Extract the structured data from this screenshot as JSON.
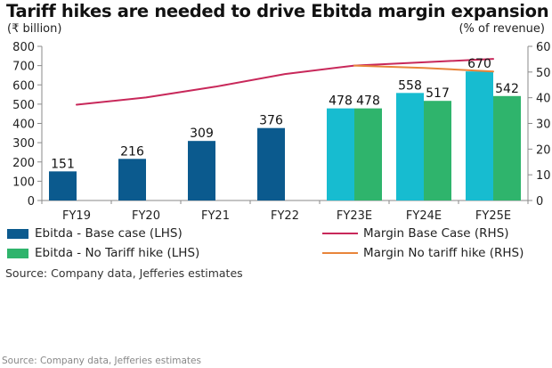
{
  "chart_data": {
    "type": "bar",
    "title": "Tariff hikes are needed to drive Ebitda margin expansion",
    "ylabel_left": "(₹ billion)",
    "ylabel_right": "(% of revenue)",
    "xlabel": "",
    "categories": [
      "FY19",
      "FY20",
      "FY21",
      "FY22",
      "FY23E",
      "FY24E",
      "FY25E"
    ],
    "ylim_left": [
      0,
      800
    ],
    "yticks_left": [
      0,
      100,
      200,
      300,
      400,
      500,
      600,
      700,
      800
    ],
    "ylim_right": [
      0,
      60
    ],
    "yticks_right": [
      0,
      10,
      20,
      30,
      40,
      50,
      60
    ],
    "grid": false,
    "bar_series": [
      {
        "name": "Ebitda - Base case (LHS)",
        "axis": "left",
        "values": [
          151,
          216,
          309,
          376,
          478,
          558,
          670
        ],
        "colors": [
          "#0b5a8e",
          "#0b5a8e",
          "#0b5a8e",
          "#0b5a8e",
          "#17bcd0",
          "#17bcd0",
          "#17bcd0"
        ]
      },
      {
        "name": "Ebitda - No Tariff hike (LHS)",
        "axis": "left",
        "values": [
          null,
          null,
          null,
          null,
          478,
          517,
          542
        ],
        "colors": [
          "#2fb46c",
          "#2fb46c",
          "#2fb46c",
          "#2fb46c",
          "#2fb46c",
          "#2fb46c",
          "#2fb46c"
        ]
      }
    ],
    "line_series": [
      {
        "name": "Margin Base Case (RHS)",
        "axis": "right",
        "color": "#c8285a",
        "values": [
          37.3,
          40.1,
          44.3,
          49.2,
          52.5,
          53.8,
          55.1
        ]
      },
      {
        "name": "Margin No tariff hike (RHS)",
        "axis": "right",
        "color": "#e8853a",
        "values": [
          null,
          null,
          null,
          null,
          52.5,
          51.6,
          50.2
        ]
      }
    ],
    "legend": {
      "placement": "bottom",
      "items": [
        {
          "label": "Ebitda - Base case (LHS)",
          "kind": "bar",
          "color": "#0b5a8e"
        },
        {
          "label": "Ebitda - No Tariff hike (LHS)",
          "kind": "bar",
          "color": "#2fb46c"
        },
        {
          "label": "Margin Base Case (RHS)",
          "kind": "line",
          "color": "#c8285a"
        },
        {
          "label": "Margin No tariff hike (RHS)",
          "kind": "line",
          "color": "#e8853a"
        }
      ]
    },
    "source": "Source: Company data, Jefferies estimates"
  },
  "footer": {
    "source": "Source: Company data, Jefferies estimates"
  }
}
